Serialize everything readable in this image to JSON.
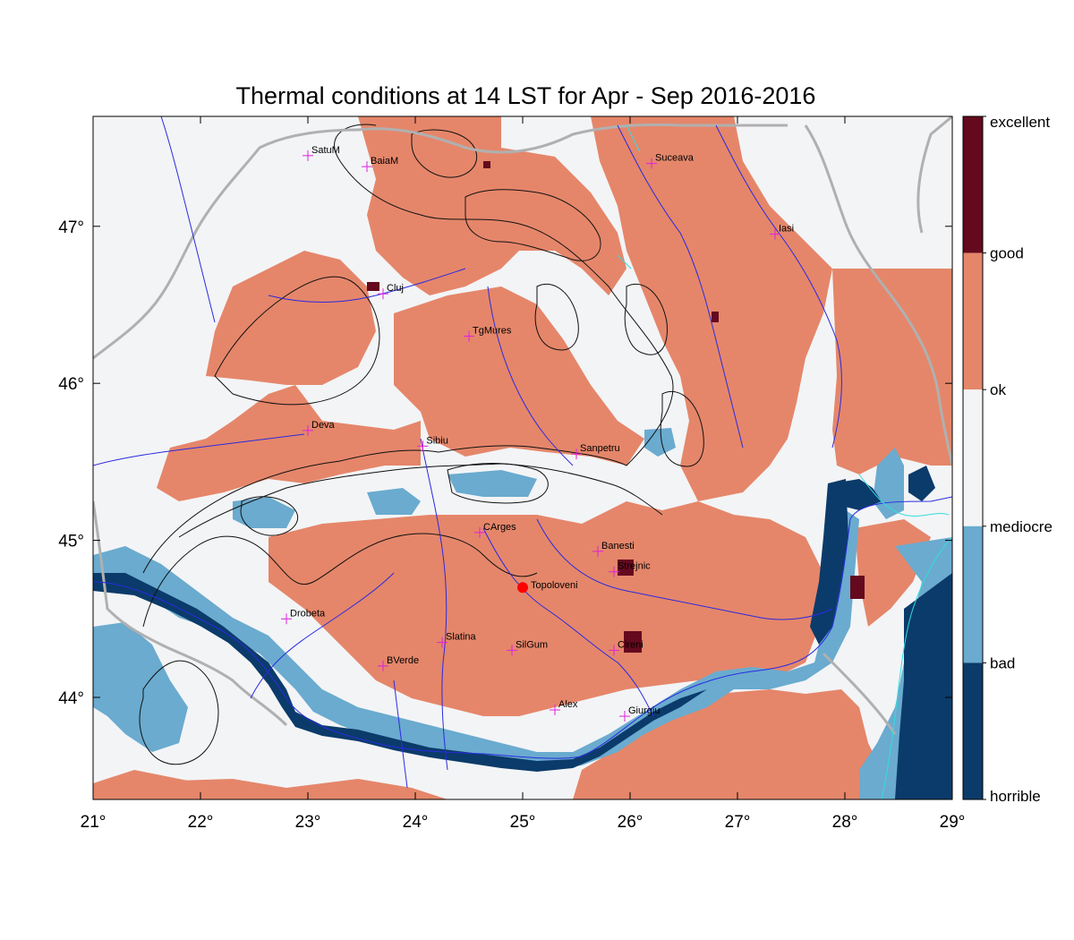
{
  "title": "Thermal conditions at 14 LST for Apr - Sep  2016-2016",
  "axes": {
    "x_ticks": [
      "21°",
      "22°",
      "23°",
      "24°",
      "25°",
      "26°",
      "27°",
      "28°",
      "29°"
    ],
    "x_values": [
      21,
      22,
      23,
      24,
      25,
      26,
      27,
      28,
      29
    ],
    "y_ticks": [
      "47°",
      "46°",
      "45°",
      "44°"
    ],
    "y_values": [
      47,
      46,
      45,
      44
    ],
    "lon_range": [
      21,
      29
    ],
    "lat_range": [
      43.35,
      47.7
    ]
  },
  "legend": {
    "categories": [
      {
        "label": "excellent",
        "color": "#650a1e"
      },
      {
        "label": "good",
        "color": "#e5866a"
      },
      {
        "label": "ok",
        "color": "#f3f4f6"
      },
      {
        "label": "mediocre",
        "color": "#6aabcf"
      },
      {
        "label": "bad",
        "color": "#0b3b6a"
      },
      {
        "label": "horrible",
        "color": ""
      }
    ]
  },
  "colors": {
    "good": "#e5866a",
    "ok": "#f3f4f6",
    "mediocre": "#6aabcf",
    "bad": "#0b3b6a",
    "excellent": "#650a1e",
    "rivers": "#2a2ae0",
    "borders": "#b0b0b0",
    "contours": "#111111",
    "city_marker": "#e020e0",
    "highlight": "#ff0000"
  },
  "cities": [
    {
      "name": "SatuM",
      "lon": 23.0,
      "lat": 47.45
    },
    {
      "name": "BaiaM",
      "lon": 23.55,
      "lat": 47.38
    },
    {
      "name": "Suceava",
      "lon": 26.2,
      "lat": 47.4
    },
    {
      "name": "Iasi",
      "lon": 27.35,
      "lat": 46.95
    },
    {
      "name": "Cluj",
      "lon": 23.7,
      "lat": 46.57
    },
    {
      "name": "TgMures",
      "lon": 24.5,
      "lat": 46.3
    },
    {
      "name": "Deva",
      "lon": 23.0,
      "lat": 45.7
    },
    {
      "name": "Sibiu",
      "lon": 24.07,
      "lat": 45.6
    },
    {
      "name": "Sanpetru",
      "lon": 25.5,
      "lat": 45.55
    },
    {
      "name": "CArges",
      "lon": 24.6,
      "lat": 45.05
    },
    {
      "name": "Banesti",
      "lon": 25.7,
      "lat": 44.93
    },
    {
      "name": "Strejnic",
      "lon": 25.85,
      "lat": 44.8
    },
    {
      "name": "Drobeta",
      "lon": 22.8,
      "lat": 44.5
    },
    {
      "name": "Slatina",
      "lon": 24.25,
      "lat": 44.35
    },
    {
      "name": "SilGum",
      "lon": 24.9,
      "lat": 44.3
    },
    {
      "name": "Clreni",
      "lon": 25.85,
      "lat": 44.3
    },
    {
      "name": "BVerde",
      "lon": 23.7,
      "lat": 44.2
    },
    {
      "name": "Alex",
      "lon": 25.3,
      "lat": 43.92
    },
    {
      "name": "Giurgiu",
      "lon": 25.95,
      "lat": 43.88
    }
  ],
  "highlight_city": {
    "name": "Topoloveni",
    "lon": 25.0,
    "lat": 44.7
  }
}
